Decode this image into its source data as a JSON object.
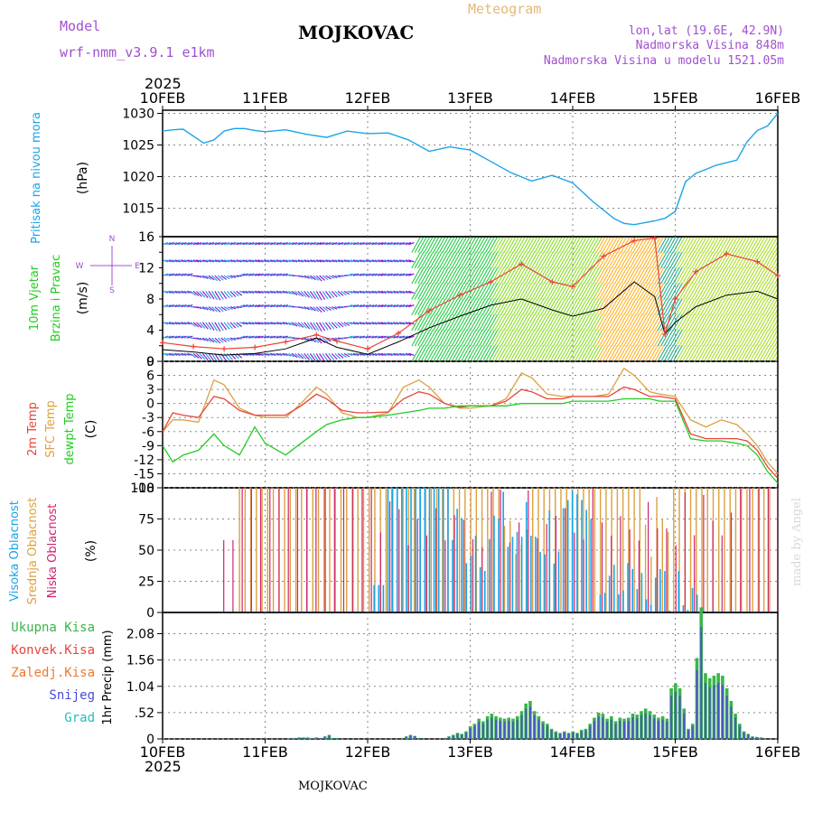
{
  "header": {
    "model_label": "Model",
    "model_name": "wrf-nmm_v3.9.1  e1km",
    "title": "MOJKOVAC",
    "meteogram": "Meteogram",
    "lonlat": "lon,lat (19.6E, 42.9N)",
    "elevation": "Nadmorska Visina 848m",
    "model_elevation": "Nadmorska Visina u modelu 1521.05m"
  },
  "footer": {
    "station": "MOJKOVAC",
    "credit": "made by Angel"
  },
  "colors": {
    "pressure": "#1aa4e6",
    "wind_speed": "#000000",
    "gust": "#e8443a",
    "temp2m": "#e8443a",
    "sfc_temp": "#dca040",
    "dewpt": "#22cc22",
    "high_cloud": "#1aa4e6",
    "mid_cloud": "#dca040",
    "low_cloud": "#d0226e",
    "total_precip": "#3ab54a",
    "snow": "#4a4ad8"
  },
  "chart_data": [
    {
      "type": "line",
      "id": "pressure",
      "title": "",
      "xlabel": "",
      "ylabel_lines": [
        "Pritisak na nivou mora",
        "(hPa)"
      ],
      "x_ticks": [
        "10FEB",
        "11FEB",
        "12FEB",
        "13FEB",
        "14FEB",
        "15FEB",
        "16FEB"
      ],
      "x_year": "2025",
      "ylim": [
        1010.5,
        1030.5
      ],
      "y_ticks": [
        1015,
        1020,
        1025,
        1030
      ],
      "x": [
        0,
        0.1,
        0.2,
        0.3,
        0.4,
        0.5,
        0.6,
        0.7,
        0.8,
        0.9,
        1.0,
        1.2,
        1.4,
        1.6,
        1.8,
        2.0,
        2.2,
        2.4,
        2.6,
        2.8,
        3.0,
        3.2,
        3.4,
        3.6,
        3.8,
        4.0,
        4.2,
        4.4,
        4.5,
        4.6,
        4.7,
        4.8,
        4.9,
        5.0,
        5.1,
        5.2,
        5.4,
        5.6,
        5.7,
        5.8,
        5.9,
        6.0
      ],
      "series": [
        {
          "values": [
            1027.2,
            1027.4,
            1027.5,
            1026.4,
            1025.3,
            1025.8,
            1027.2,
            1027.6,
            1027.6,
            1027.3,
            1027.1,
            1027.4,
            1026.7,
            1026.2,
            1027.2,
            1026.8,
            1026.9,
            1025.8,
            1024.0,
            1024.7,
            1024.2,
            1022.4,
            1020.6,
            1019.3,
            1020.2,
            1019.0,
            1016.0,
            1013.4,
            1012.6,
            1012.4,
            1012.7,
            1013.0,
            1013.4,
            1014.5,
            1019.2,
            1020.5,
            1021.8,
            1022.6,
            1025.5,
            1027.3,
            1028.0,
            1030.0
          ]
        }
      ]
    },
    {
      "type": "line",
      "id": "wind",
      "ylabel_lines": [
        "10m Vjetar",
        "Brzina i Pravac",
        "(m/s)"
      ],
      "compass": {
        "n": "N",
        "s": "S",
        "e": "E",
        "w": "W"
      },
      "ylim": [
        0,
        16
      ],
      "y_ticks": [
        0,
        4,
        8,
        12,
        16
      ],
      "y_ticks_minor": [
        2,
        6,
        10,
        14
      ],
      "x": [
        0,
        0.3,
        0.6,
        0.9,
        1.2,
        1.5,
        1.7,
        2.0,
        2.3,
        2.6,
        2.9,
        3.2,
        3.5,
        3.8,
        4.0,
        4.3,
        4.6,
        4.8,
        4.9,
        5.0,
        5.2,
        5.5,
        5.8,
        6.0
      ],
      "series": [
        {
          "values": [
            1.5,
            1.2,
            0.8,
            1.0,
            1.6,
            3.0,
            1.8,
            0.9,
            2.5,
            4.3,
            5.8,
            7.2,
            8.0,
            6.6,
            5.8,
            6.8,
            10.2,
            8.3,
            3.5,
            5.0,
            7.0,
            8.5,
            9.0,
            8.0
          ]
        },
        {
          "values": [
            2.4,
            1.9,
            1.6,
            1.8,
            2.5,
            3.4,
            2.6,
            1.6,
            3.6,
            6.5,
            8.5,
            10.2,
            12.5,
            10.2,
            9.6,
            13.5,
            15.5,
            15.8,
            3.5,
            8.0,
            11.5,
            13.8,
            12.8,
            11.0
          ]
        }
      ]
    },
    {
      "type": "line",
      "id": "temperature",
      "ylabel_lines": [
        "2m Temp",
        "SFC Temp",
        "dewpt Temp",
        "(C)"
      ],
      "ylim": [
        -18,
        9
      ],
      "y_ticks": [
        -18,
        -15,
        -12,
        -9,
        -6,
        -3,
        0,
        3,
        6,
        9
      ],
      "x": [
        0,
        0.1,
        0.2,
        0.35,
        0.5,
        0.6,
        0.75,
        0.9,
        1.0,
        1.2,
        1.35,
        1.5,
        1.6,
        1.75,
        1.9,
        2.0,
        2.2,
        2.35,
        2.5,
        2.6,
        2.75,
        2.9,
        3.0,
        3.2,
        3.35,
        3.5,
        3.6,
        3.75,
        3.9,
        4.0,
        4.2,
        4.35,
        4.5,
        4.6,
        4.75,
        4.85,
        5.0,
        5.15,
        5.3,
        5.45,
        5.6,
        5.7,
        5.8,
        5.9,
        6.0
      ],
      "series": [
        {
          "values": [
            -6.0,
            -2.0,
            -2.5,
            -3.0,
            1.5,
            1.0,
            -1.5,
            -2.5,
            -2.5,
            -2.5,
            -0.5,
            2.0,
            1.0,
            -1.5,
            -2.0,
            -2.0,
            -1.8,
            1.0,
            2.5,
            2.0,
            0,
            -0.8,
            -0.5,
            -0.5,
            0.5,
            3.0,
            2.5,
            1.0,
            1.0,
            1.5,
            1.5,
            1.5,
            3.5,
            3.0,
            1.5,
            1.5,
            1.0,
            -6.5,
            -7.5,
            -7.5,
            -7.5,
            -8.0,
            -10.0,
            -13.5,
            -16.0
          ]
        },
        {
          "values": [
            -6.0,
            -3.5,
            -3.5,
            -4.0,
            5.0,
            4.0,
            -1.0,
            -2.5,
            -3.0,
            -3.0,
            0,
            3.5,
            2.0,
            -2.0,
            -3.0,
            -3.0,
            -2.0,
            3.5,
            5.0,
            3.5,
            0,
            -1.0,
            -1.0,
            -0.5,
            1.0,
            6.5,
            5.5,
            2.0,
            1.5,
            1.5,
            1.5,
            2.0,
            7.5,
            6.0,
            2.5,
            2.0,
            1.5,
            -3.5,
            -5.0,
            -3.5,
            -4.5,
            -6.5,
            -9.0,
            -12.5,
            -15.0
          ]
        },
        {
          "values": [
            -9.0,
            -12.5,
            -11.0,
            -10.0,
            -6.5,
            -9.0,
            -11.0,
            -5.0,
            -8.5,
            -11.0,
            -8.5,
            -6.0,
            -4.5,
            -3.5,
            -3.0,
            -3.0,
            -2.5,
            -2.0,
            -1.5,
            -1.0,
            -1.0,
            -0.5,
            -0.5,
            -0.5,
            -0.5,
            0,
            0,
            0,
            0,
            0.5,
            0.5,
            0.5,
            1.0,
            1.0,
            1.0,
            0.5,
            0.5,
            -7.5,
            -8.0,
            -8.0,
            -8.5,
            -9.0,
            -11.0,
            -14.5,
            -17.0
          ]
        }
      ]
    },
    {
      "type": "bar",
      "id": "clouds",
      "ylabel_lines": [
        "Visoka Oblacnost",
        "Srednja Oblacnost",
        "Niska Oblacnost",
        "(%)"
      ],
      "ylim": [
        0,
        100
      ],
      "y_ticks": [
        0,
        25,
        50,
        75,
        100
      ]
    },
    {
      "type": "bar",
      "id": "precip",
      "legend": [
        "Ukupna Kisa",
        "Konvek.Kisa",
        "Zaledj.Kisa",
        "Snijeg",
        "Grad"
      ],
      "legend_colors": [
        "#3ab54a",
        "#e8443a",
        "#f07830",
        "#4a4ad8",
        "#20c0c0"
      ],
      "ylabel": "1hr Precip (mm)",
      "ylim": [
        0,
        2.5
      ],
      "y_ticks": [
        0,
        0.52,
        1.04,
        1.56,
        2.08
      ],
      "x_ticks": [
        "10FEB",
        "11FEB",
        "12FEB",
        "13FEB",
        "14FEB",
        "15FEB",
        "16FEB"
      ],
      "x_year": "2025",
      "bin_days": 0.0417,
      "x_start": 1.25,
      "values": [
        0.02,
        0.02,
        0.03,
        0.03,
        0.03,
        0.02,
        0.03,
        0.02,
        0.05,
        0.08,
        0.02,
        0.02,
        0,
        0,
        0,
        0,
        0,
        0,
        0,
        0,
        0,
        0,
        0,
        0,
        0,
        0,
        0,
        0.05,
        0.08,
        0.06,
        0.02,
        0,
        0,
        0,
        0,
        0,
        0.02,
        0.05,
        0.08,
        0.12,
        0.1,
        0.15,
        0.25,
        0.3,
        0.4,
        0.35,
        0.45,
        0.5,
        0.45,
        0.42,
        0.4,
        0.42,
        0.4,
        0.45,
        0.55,
        0.7,
        0.75,
        0.55,
        0.45,
        0.35,
        0.3,
        0.2,
        0.15,
        0.12,
        0.15,
        0.12,
        0.15,
        0.12,
        0.18,
        0.2,
        0.3,
        0.42,
        0.52,
        0.5,
        0.4,
        0.45,
        0.35,
        0.42,
        0.4,
        0.42,
        0.5,
        0.48,
        0.55,
        0.6,
        0.55,
        0.48,
        0.42,
        0.45,
        0.4,
        1.0,
        1.1,
        1.0,
        0.6,
        0.2,
        0.3,
        1.6,
        2.6,
        1.3,
        1.2,
        1.25,
        1.3,
        1.25,
        1.0,
        0.75,
        0.5,
        0.3,
        0.15,
        0.1,
        0.05,
        0.04,
        0.03
      ]
    }
  ]
}
